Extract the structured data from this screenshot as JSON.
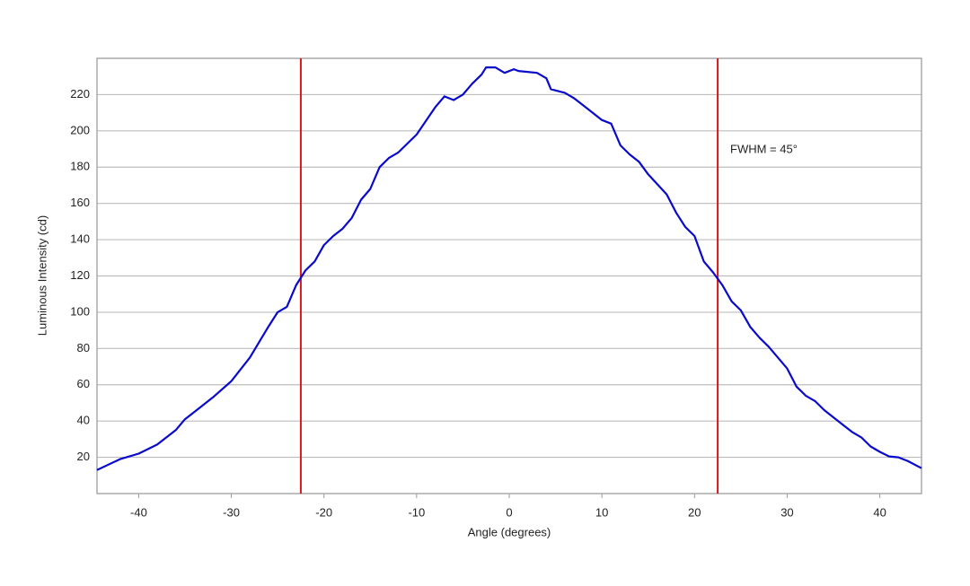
{
  "chart_data": {
    "type": "line",
    "x_label": "Angle (degrees)",
    "y_label": "Luminous Intensity (cd)",
    "annotation": "FWHM = 45°",
    "x": [
      -44.5,
      -42,
      -40,
      -38,
      -36,
      -35,
      -34,
      -32,
      -30,
      -28,
      -26,
      -25,
      -24,
      -23,
      -22,
      -21,
      -20,
      -19,
      -18,
      -17,
      -16,
      -15,
      -14,
      -13,
      -12,
      -10,
      -8,
      -7,
      -6,
      -5,
      -4,
      -3,
      -2.5,
      -1.5,
      -0.5,
      0.5,
      1,
      3,
      4,
      4.5,
      6,
      7,
      8,
      10,
      11,
      12,
      13,
      14,
      15,
      17,
      18,
      19,
      20,
      21,
      22,
      23,
      24,
      25,
      26,
      27,
      28,
      30,
      31,
      32,
      33,
      34,
      35,
      36,
      37,
      38,
      39,
      40,
      41,
      42,
      43,
      44.5
    ],
    "series": [
      {
        "color": "#0a0acc",
        "values": [
          13,
          19,
          22,
          27,
          35,
          41,
          45,
          53,
          62,
          75,
          92,
          100,
          103,
          115,
          123,
          128,
          137,
          142,
          146,
          152,
          162,
          168,
          180,
          185,
          188,
          198,
          213,
          219,
          217,
          220,
          226,
          231,
          235,
          235,
          232,
          234,
          233,
          232,
          229,
          223,
          221,
          218,
          214,
          206,
          204,
          192,
          187,
          183,
          176,
          165,
          155,
          147,
          142,
          128,
          122,
          115,
          106,
          101,
          92,
          86,
          81,
          69,
          59,
          54,
          51,
          46,
          42,
          38,
          34,
          31,
          26,
          23,
          20.5,
          20,
          18,
          14
        ]
      }
    ],
    "vlines": [
      -22.5,
      22.5
    ],
    "vline_color": "#d81818",
    "xlim": [
      -44.5,
      44.5
    ],
    "xticks": [
      -40,
      -30,
      -20,
      -10,
      0,
      10,
      20,
      30,
      40
    ],
    "ylim": [
      0,
      240
    ],
    "yticks": [
      20,
      40,
      60,
      80,
      100,
      120,
      140,
      160,
      180,
      200,
      220
    ],
    "grid": true
  }
}
